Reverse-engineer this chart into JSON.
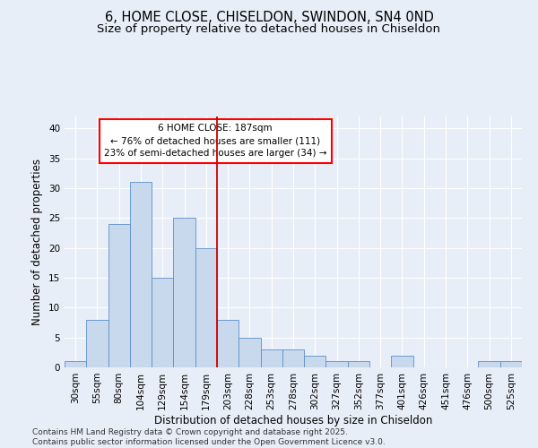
{
  "title": "6, HOME CLOSE, CHISELDON, SWINDON, SN4 0ND",
  "subtitle": "Size of property relative to detached houses in Chiseldon",
  "xlabel": "Distribution of detached houses by size in Chiseldon",
  "ylabel": "Number of detached properties",
  "bar_color": "#c8d9ee",
  "bar_edge_color": "#5b8fc9",
  "categories": [
    "30sqm",
    "55sqm",
    "80sqm",
    "104sqm",
    "129sqm",
    "154sqm",
    "179sqm",
    "203sqm",
    "228sqm",
    "253sqm",
    "278sqm",
    "302sqm",
    "327sqm",
    "352sqm",
    "377sqm",
    "401sqm",
    "426sqm",
    "451sqm",
    "476sqm",
    "500sqm",
    "525sqm"
  ],
  "values": [
    1,
    8,
    24,
    31,
    15,
    25,
    20,
    8,
    5,
    3,
    3,
    2,
    1,
    1,
    0,
    2,
    0,
    0,
    0,
    1,
    1
  ],
  "ylim": [
    0,
    42
  ],
  "yticks": [
    0,
    5,
    10,
    15,
    20,
    25,
    30,
    35,
    40
  ],
  "vline_color": "#cc0000",
  "annotation_line1": "6 HOME CLOSE: 187sqm",
  "annotation_line2": "← 76% of detached houses are smaller (111)",
  "annotation_line3": "23% of semi-detached houses are larger (34) →",
  "footer_text": "Contains HM Land Registry data © Crown copyright and database right 2025.\nContains public sector information licensed under the Open Government Licence v3.0.",
  "background_color": "#e8eef7",
  "plot_bg_color": "#e8eef7",
  "grid_color": "#ffffff",
  "title_fontsize": 10.5,
  "subtitle_fontsize": 9.5,
  "axis_label_fontsize": 8.5,
  "tick_fontsize": 7.5,
  "annotation_fontsize": 7.5,
  "footer_fontsize": 6.5
}
